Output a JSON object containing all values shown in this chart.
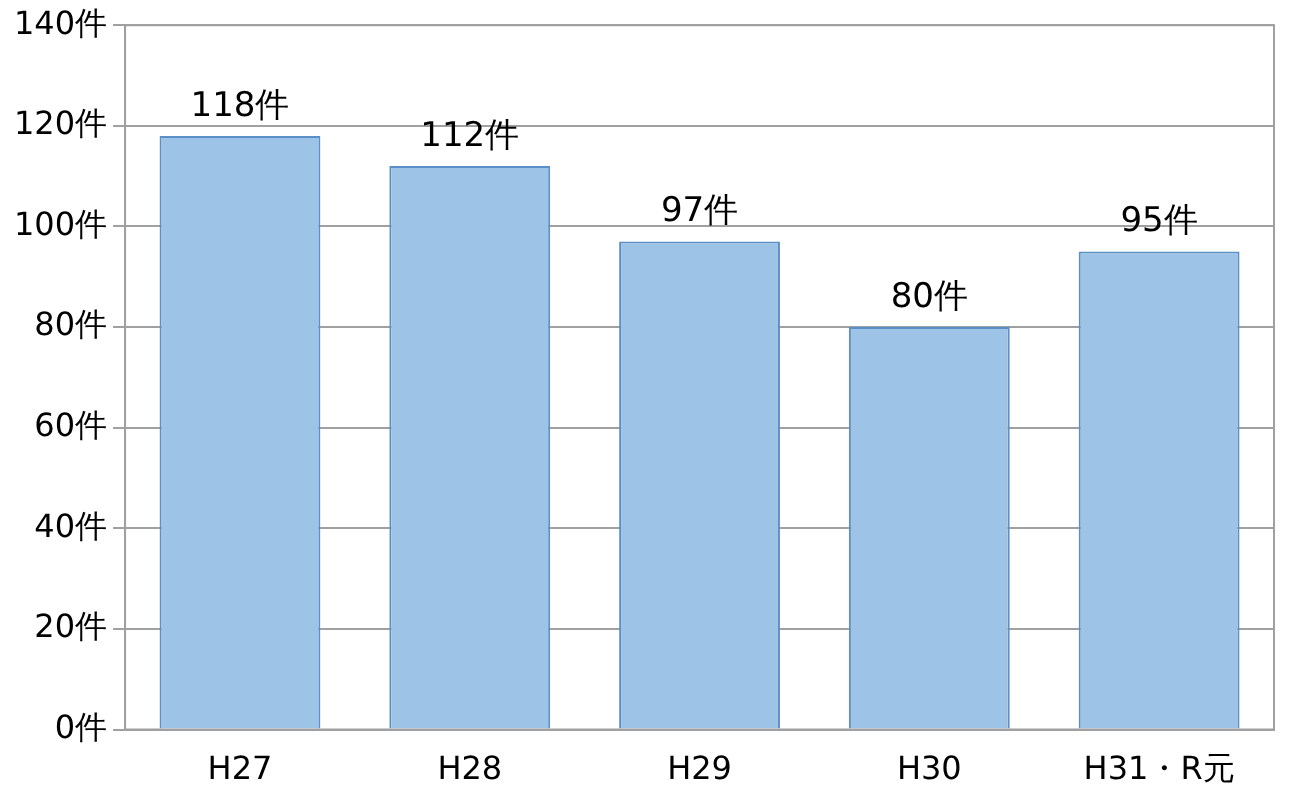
{
  "chart_data": {
    "type": "bar",
    "categories": [
      "H27",
      "H28",
      "H29",
      "H30",
      "H31・R元"
    ],
    "values": [
      118,
      112,
      97,
      80,
      95
    ],
    "color": "#9dc3e6",
    "value_labels": [
      "118件",
      "112件",
      "97件",
      "80件",
      "95件"
    ],
    "ylim": [
      0,
      140
    ],
    "yticks": [
      {
        "value": 0,
        "label": "0件"
      },
      {
        "value": 20,
        "label": "20件"
      },
      {
        "value": 40,
        "label": "40件"
      },
      {
        "value": 60,
        "label": "60件"
      },
      {
        "value": 80,
        "label": "80件"
      },
      {
        "value": 100,
        "label": "100件"
      },
      {
        "value": 120,
        "label": "120件"
      },
      {
        "value": 140,
        "label": "140件"
      }
    ],
    "grid": "y",
    "legend": false
  }
}
